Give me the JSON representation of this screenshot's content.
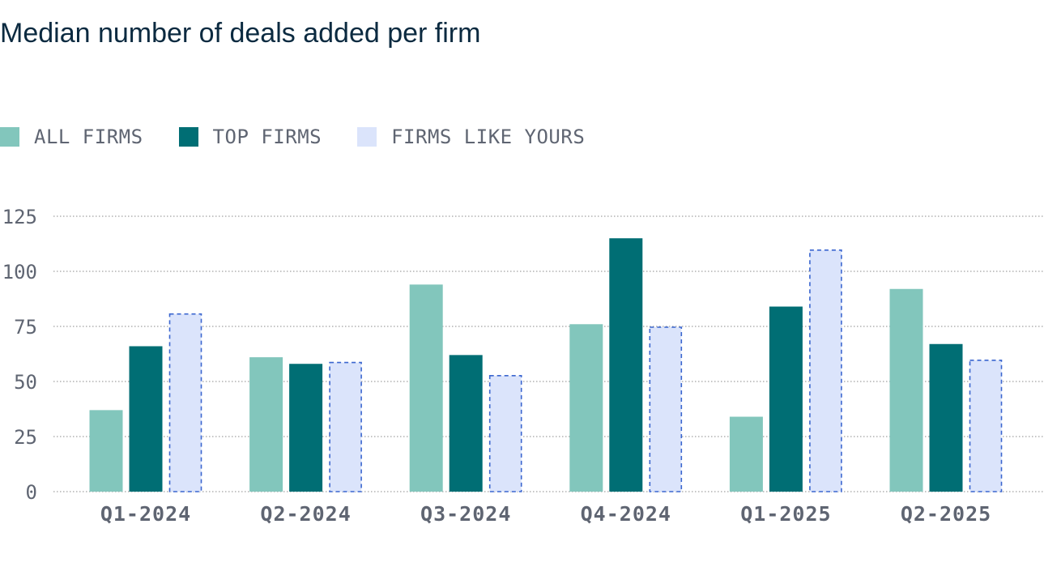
{
  "chart_data": {
    "type": "bar",
    "title": "Median number of deals added per firm",
    "xlabel": "",
    "ylabel": "",
    "ylim": [
      0,
      125
    ],
    "yticks": [
      0,
      25,
      50,
      75,
      100,
      125
    ],
    "grid": true,
    "legend_position": "top-left",
    "categories": [
      "Q1-2024",
      "Q2-2024",
      "Q3-2024",
      "Q4-2024",
      "Q1-2025",
      "Q2-2025"
    ],
    "series": [
      {
        "name": "ALL FIRMS",
        "color": "#82c6bc",
        "style": "solid",
        "values": [
          37,
          61,
          94,
          76,
          34,
          92
        ]
      },
      {
        "name": "TOP FIRMS",
        "color": "#006e74",
        "style": "solid",
        "values": [
          66,
          58,
          62,
          115,
          84,
          67
        ]
      },
      {
        "name": "FIRMS LIKE YOURS",
        "color": "#dbe4fb",
        "stroke": "#3b66cf",
        "style": "dashed",
        "values": [
          81,
          59,
          53,
          75,
          110,
          60
        ]
      }
    ]
  }
}
